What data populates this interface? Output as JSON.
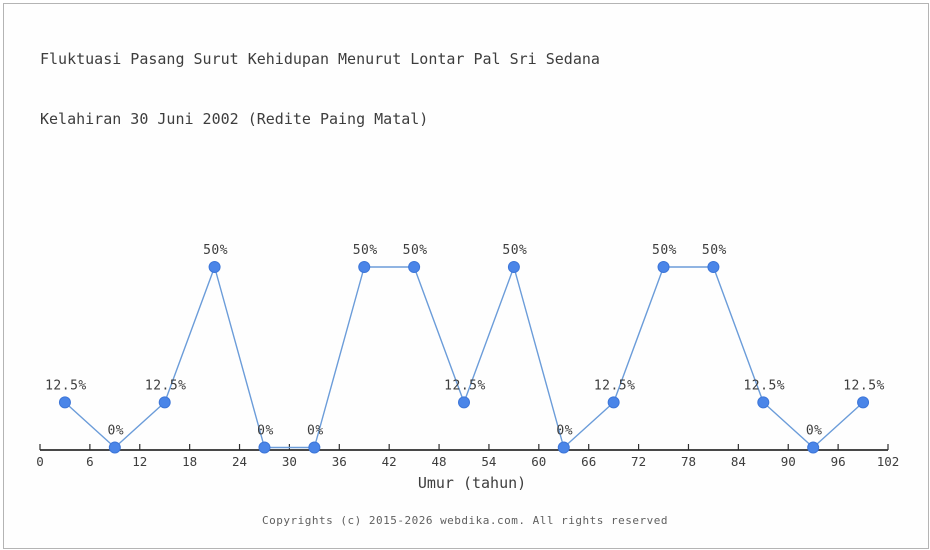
{
  "header": {
    "title_line1": "Fluktuasi Pasang Surut Kehidupan Menurut Lontar Pal Sri Sedana",
    "title_line2": "Kelahiran 30 Juni 2002 (Redite Paing Matal)"
  },
  "chart_data": {
    "type": "line",
    "title": "Fluktuasi Pasang Surut Kehidupan Menurut Lontar Pal Sri Sedana Kelahiran 30 Juni 2002 (Redite Paing Matal)",
    "x": [
      3,
      9,
      15,
      21,
      27,
      33,
      39,
      45,
      51,
      57,
      63,
      69,
      75,
      81,
      87,
      93,
      99
    ],
    "values": [
      12.5,
      0,
      12.5,
      50,
      0,
      0,
      50,
      50,
      12.5,
      50,
      0,
      12.5,
      50,
      50,
      12.5,
      0,
      12.5
    ],
    "point_labels": [
      "12.5%",
      "0%",
      "12.5%",
      "50%",
      "0%",
      "0%",
      "50%",
      "50%",
      "12.5%",
      "50%",
      "0%",
      "12.5%",
      "50%",
      "50%",
      "12.5%",
      "0%",
      "12.5%"
    ],
    "x_ticks": [
      0,
      6,
      12,
      18,
      24,
      30,
      36,
      42,
      48,
      54,
      60,
      66,
      72,
      78,
      84,
      90,
      96,
      102
    ],
    "xlabel": "Umur (tahun)",
    "ylabel": "",
    "xlim": [
      0,
      102
    ],
    "ylim": [
      0,
      100
    ],
    "grid": false,
    "legend": "none"
  },
  "colors": {
    "line": "#6b9cd9",
    "marker": "#4a85e8",
    "marker_edge": "#3d76d8",
    "axis": "#2e2e2e",
    "text": "#3d3d3d",
    "muted": "#606060",
    "border": "#b4b4b4"
  },
  "footer": {
    "copyright": "Copyrights (c) 2015-2026 webdika.com. All rights reserved"
  }
}
